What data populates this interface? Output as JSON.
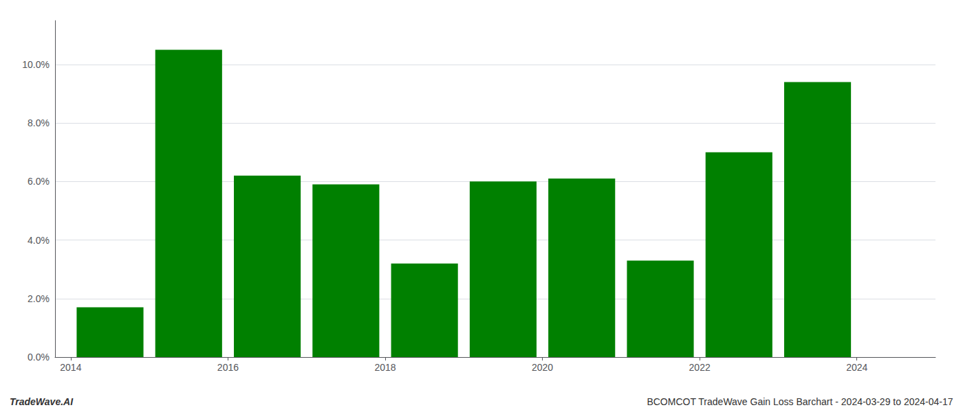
{
  "chart_data": {
    "type": "bar",
    "x": [
      2014,
      2015,
      2016,
      2017,
      2018,
      2019,
      2020,
      2021,
      2022,
      2023
    ],
    "values": [
      0.017,
      0.105,
      0.062,
      0.059,
      0.032,
      0.06,
      0.061,
      0.033,
      0.07,
      0.094
    ],
    "color": "#008000",
    "xlim": [
      2013.3,
      2024.5
    ],
    "xticks": [
      {
        "value": 2013.5,
        "label": "2014"
      },
      {
        "value": 2015.5,
        "label": "2016"
      },
      {
        "value": 2017.5,
        "label": "2018"
      },
      {
        "value": 2019.5,
        "label": "2020"
      },
      {
        "value": 2021.5,
        "label": "2022"
      },
      {
        "value": 2023.5,
        "label": "2024"
      }
    ],
    "ylim": [
      0,
      0.115
    ],
    "yticks": [
      {
        "value": 0.0,
        "label": "0.0%"
      },
      {
        "value": 0.02,
        "label": "2.0%"
      },
      {
        "value": 0.04,
        "label": "4.0%"
      },
      {
        "value": 0.06,
        "label": "6.0%"
      },
      {
        "value": 0.08,
        "label": "8.0%"
      },
      {
        "value": 0.1,
        "label": "10.0%"
      }
    ],
    "grid": true,
    "annotations": [
      "TradeWave.AI",
      "BCOMCOT TradeWave Gain Loss Barchart - 2024-03-29 to 2024-04-17"
    ]
  }
}
